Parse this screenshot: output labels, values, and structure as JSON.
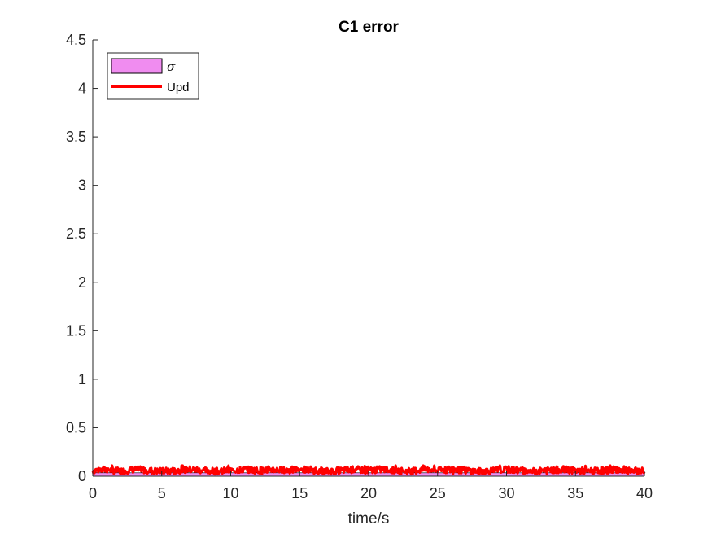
{
  "chart_data": {
    "type": "area",
    "title": "C1 error",
    "xlabel": "time/s",
    "ylabel": "",
    "xlim": [
      0,
      40
    ],
    "ylim": [
      0,
      4.5
    ],
    "xticks": [
      0,
      5,
      10,
      15,
      20,
      25,
      30,
      35,
      40
    ],
    "xtick_labels": [
      "0",
      "5",
      "10",
      "15",
      "20",
      "25",
      "30",
      "35",
      "40"
    ],
    "yticks": [
      0,
      0.5,
      1,
      1.5,
      2,
      2.5,
      3,
      3.5,
      4,
      4.5
    ],
    "ytick_labels": [
      "0",
      "0.5",
      "1",
      "1.5",
      "2",
      "2.5",
      "3",
      "3.5",
      "4",
      "4.5"
    ],
    "grid": false,
    "legend_location": "top-left",
    "series": [
      {
        "name": "σ",
        "kind": "band",
        "color": "#f08cf0",
        "edge_color": "#000000",
        "x": [
          0,
          40
        ],
        "upper": [
          0.035,
          0.035
        ],
        "lower": [
          0,
          0
        ]
      },
      {
        "name": "Upd",
        "kind": "line",
        "color": "#ff0000",
        "x": [
          0,
          1,
          2,
          3,
          4,
          5,
          6,
          7,
          8,
          9,
          10,
          11,
          12,
          13,
          14,
          15,
          16,
          17,
          18,
          19,
          20,
          21,
          22,
          23,
          24,
          25,
          26,
          27,
          28,
          29,
          30,
          31,
          32,
          33,
          34,
          35,
          36,
          37,
          38,
          39,
          40
        ],
        "values": [
          0.06,
          0.07,
          0.05,
          0.07,
          0.06,
          0.05,
          0.06,
          0.07,
          0.06,
          0.05,
          0.06,
          0.07,
          0.06,
          0.07,
          0.06,
          0.07,
          0.06,
          0.05,
          0.06,
          0.07,
          0.06,
          0.07,
          0.06,
          0.05,
          0.07,
          0.06,
          0.07,
          0.06,
          0.05,
          0.06,
          0.07,
          0.06,
          0.05,
          0.06,
          0.07,
          0.06,
          0.05,
          0.06,
          0.07,
          0.05,
          0.06
        ],
        "noise_range": [
          0.02,
          0.11
        ]
      }
    ]
  }
}
